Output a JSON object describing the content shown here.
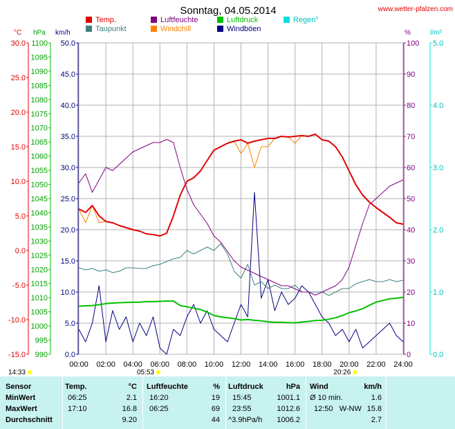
{
  "header": {
    "title": "Sonntag, 04.05.2014",
    "site": "www.wetter-pfalzen.com"
  },
  "legend": [
    {
      "label": "Temp.",
      "color": "#e00000"
    },
    {
      "label": "Luftfeuchte",
      "color": "#800080"
    },
    {
      "label": "Luftdruck",
      "color": "#00c000"
    },
    {
      "label": "Regen°",
      "color": "#00e0e0"
    },
    {
      "label": "Taupunkt",
      "color": "#408080"
    },
    {
      "label": "Windchill",
      "color": "#ff8000"
    },
    {
      "label": "Windböen",
      "color": "#000080"
    }
  ],
  "axis_units": {
    "temp": "°C",
    "pressure": "hPa",
    "wind": "km/h",
    "humidity": "%",
    "rain": "l/m²"
  },
  "sun": {
    "sunrise": "05:53",
    "sunset": "20:26",
    "moon": "14:33"
  },
  "chart_data": {
    "type": "line",
    "title": "Sonntag, 04.05.2014",
    "x": [
      "00:00",
      "00:30",
      "01:00",
      "01:30",
      "02:00",
      "02:30",
      "03:00",
      "03:30",
      "04:00",
      "04:30",
      "05:00",
      "05:30",
      "06:00",
      "06:30",
      "07:00",
      "07:30",
      "08:00",
      "08:30",
      "09:00",
      "09:30",
      "10:00",
      "10:30",
      "11:00",
      "11:30",
      "12:00",
      "12:30",
      "13:00",
      "13:30",
      "14:00",
      "14:30",
      "15:00",
      "15:30",
      "16:00",
      "16:30",
      "17:00",
      "17:30",
      "18:00",
      "18:30",
      "19:00",
      "19:30",
      "20:00",
      "20:30",
      "21:00",
      "21:30",
      "22:00",
      "22:30",
      "23:00",
      "23:30",
      "24:00"
    ],
    "x_ticks": [
      "00:00",
      "02:00",
      "04:00",
      "06:00",
      "08:00",
      "10:00",
      "12:00",
      "14:00",
      "16:00",
      "18:00",
      "20:00",
      "22:00",
      "24:00"
    ],
    "axes": {
      "temp_c": {
        "label": "°C",
        "ylim": [
          -15,
          30
        ],
        "ticks": [
          "30.0",
          "25.0",
          "20.0",
          "15.0",
          "10.0",
          "5.0",
          "0.0",
          "-5.0",
          "-10.0",
          "-15.0"
        ]
      },
      "pressure_hpa": {
        "label": "hPa",
        "ylim": [
          990,
          1100
        ],
        "ticks": [
          "1100",
          "1095",
          "1090",
          "1085",
          "1080",
          "1075",
          "1070",
          "1065",
          "1060",
          "1055",
          "1050",
          "1045",
          "1040",
          "1035",
          "1030",
          "1025",
          "1020",
          "1015",
          "1010",
          "1005",
          "1000",
          "995",
          "990"
        ]
      },
      "wind_kmh": {
        "label": "km/h",
        "ylim": [
          0,
          50
        ],
        "ticks": [
          "50.0",
          "45.0",
          "40.0",
          "35.0",
          "30.0",
          "25.0",
          "20.0",
          "15.0",
          "10.0",
          "5.0",
          "0.0"
        ]
      },
      "humidity_pct": {
        "label": "%",
        "ylim": [
          0,
          100
        ],
        "ticks": [
          "100",
          "90",
          "80",
          "70",
          "60",
          "50",
          "40",
          "30",
          "20",
          "10",
          "0"
        ]
      },
      "rain_lm2": {
        "label": "l/m²",
        "ylim": [
          0,
          5
        ],
        "ticks": [
          "5.0",
          "4.0",
          "3.0",
          "2.0",
          "1.0",
          "0.0"
        ]
      }
    },
    "series": [
      {
        "name": "Temp.",
        "axis": "temp_c",
        "color": "#e00000",
        "values": [
          6.0,
          5.5,
          6.5,
          5.0,
          4.2,
          4.0,
          3.6,
          3.3,
          3.0,
          2.8,
          2.4,
          2.3,
          2.1,
          2.5,
          5.0,
          8.0,
          10.0,
          10.5,
          11.5,
          13.0,
          14.5,
          15.0,
          15.5,
          15.8,
          16.0,
          15.5,
          15.8,
          16.0,
          16.2,
          16.2,
          16.5,
          16.4,
          16.5,
          16.6,
          16.5,
          16.8,
          16.0,
          15.8,
          15.0,
          13.5,
          11.5,
          9.5,
          8.0,
          7.0,
          6.2,
          5.5,
          4.8,
          4.0,
          3.8
        ]
      },
      {
        "name": "Windchill",
        "axis": "temp_c",
        "color": "#ff8000",
        "values": [
          6.0,
          4.0,
          6.5,
          4.0,
          4.2,
          4.0,
          3.6,
          3.3,
          3.0,
          2.8,
          2.4,
          2.3,
          2.1,
          2.5,
          5.0,
          8.0,
          10.0,
          10.5,
          11.5,
          13.0,
          14.5,
          15.0,
          15.5,
          15.8,
          14.0,
          15.5,
          12.0,
          15.0,
          15.0,
          16.2,
          16.5,
          16.4,
          15.5,
          16.6,
          16.5,
          16.8,
          16.0,
          15.8,
          15.0,
          13.5,
          11.5,
          9.5,
          8.0,
          7.0,
          6.2,
          5.5,
          4.8,
          4.0,
          3.8
        ]
      },
      {
        "name": "Taupunkt",
        "axis": "temp_c",
        "color": "#408080",
        "values": [
          -2.5,
          -2.8,
          -2.6,
          -3.0,
          -2.8,
          -3.2,
          -3.0,
          -2.5,
          -2.5,
          -2.6,
          -2.6,
          -2.2,
          -2.0,
          -1.6,
          -1.2,
          -1.0,
          0.0,
          -0.5,
          0.0,
          0.5,
          0.0,
          1.0,
          -0.5,
          -3.0,
          -4.0,
          -2.0,
          -5.0,
          -4.5,
          -5.5,
          -5.0,
          -5.5,
          -5.5,
          -5.0,
          -6.0,
          -6.0,
          -6.0,
          -6.0,
          -6.5,
          -6.0,
          -5.5,
          -5.5,
          -4.8,
          -4.5,
          -4.2,
          -4.5,
          -4.5,
          -4.2,
          -4.5,
          -4.3
        ]
      },
      {
        "name": "Luftfeuchte",
        "axis": "humidity_pct",
        "color": "#800080",
        "values": [
          55,
          58,
          52,
          56,
          60,
          59,
          61,
          63,
          65,
          66,
          67,
          68,
          68,
          69,
          68,
          60,
          53,
          48,
          45,
          42,
          38,
          36,
          33,
          30,
          28,
          27,
          26,
          25,
          24,
          23,
          22,
          22,
          21,
          20,
          20,
          19,
          20,
          21,
          22,
          24,
          28,
          35,
          42,
          48,
          50,
          52,
          54,
          55,
          56
        ]
      },
      {
        "name": "Luftdruck",
        "axis": "pressure_hpa",
        "color": "#00c000",
        "values": [
          1007.0,
          1007.1,
          1007.2,
          1007.5,
          1007.9,
          1008.1,
          1008.2,
          1008.3,
          1008.4,
          1008.4,
          1008.6,
          1008.6,
          1008.7,
          1008.8,
          1008.8,
          1007.2,
          1006.8,
          1006.3,
          1005.8,
          1004.9,
          1003.7,
          1003.2,
          1002.9,
          1002.6,
          1002.1,
          1002.3,
          1002.0,
          1001.8,
          1001.5,
          1001.3,
          1001.3,
          1001.2,
          1001.1,
          1001.4,
          1001.6,
          1001.9,
          1002.0,
          1002.4,
          1002.9,
          1003.7,
          1004.7,
          1005.3,
          1006.1,
          1007.3,
          1008.4,
          1009.0,
          1009.6,
          1009.8,
          1010.1
        ]
      },
      {
        "name": "Windböen",
        "axis": "wind_kmh",
        "color": "#000080",
        "values": [
          4,
          2,
          5,
          11,
          2,
          7,
          4,
          6,
          2,
          5,
          3,
          6,
          1,
          0,
          4,
          3,
          6,
          8,
          5,
          7,
          4,
          3,
          2,
          5,
          8,
          6,
          26,
          9,
          12,
          7,
          10,
          8,
          9,
          11,
          10,
          8,
          6,
          5,
          3,
          4,
          2,
          4,
          1,
          2,
          3,
          4,
          5,
          3,
          2
        ]
      }
    ]
  },
  "stats": {
    "headers": {
      "sensor": "Sensor",
      "temp": "Temp.",
      "temp_unit": "°C",
      "hum": "Luftfeuchte",
      "hum_unit": "%",
      "press": "Luftdruck",
      "press_unit": "hPa",
      "wind": "Wind",
      "wind_unit": "km/h"
    },
    "rows": [
      {
        "label": "MinWert",
        "temp_time": "06:25",
        "temp_val": "2.1",
        "hum_time": "16:20",
        "hum_val": "19",
        "press_time": "15:45",
        "press_val": "1001.1",
        "wind_time": "Ø 10 min.",
        "wind_val": "1.6"
      },
      {
        "label": "MaxWert",
        "temp_time": "17:10",
        "temp_val": "16.8",
        "hum_time": "06:25",
        "hum_val": "69",
        "press_time": "23:55",
        "press_val": "1012.6",
        "wind_time": "12:50   W-NW",
        "wind_val": "15.8"
      },
      {
        "label": "Durchschnitt",
        "temp_time": "",
        "temp_val": "9.20",
        "hum_time": "",
        "hum_val": "44",
        "press_time": "^3.9hPa/h",
        "press_val": "1006.2",
        "wind_time": "",
        "wind_val": "2.7"
      }
    ]
  }
}
